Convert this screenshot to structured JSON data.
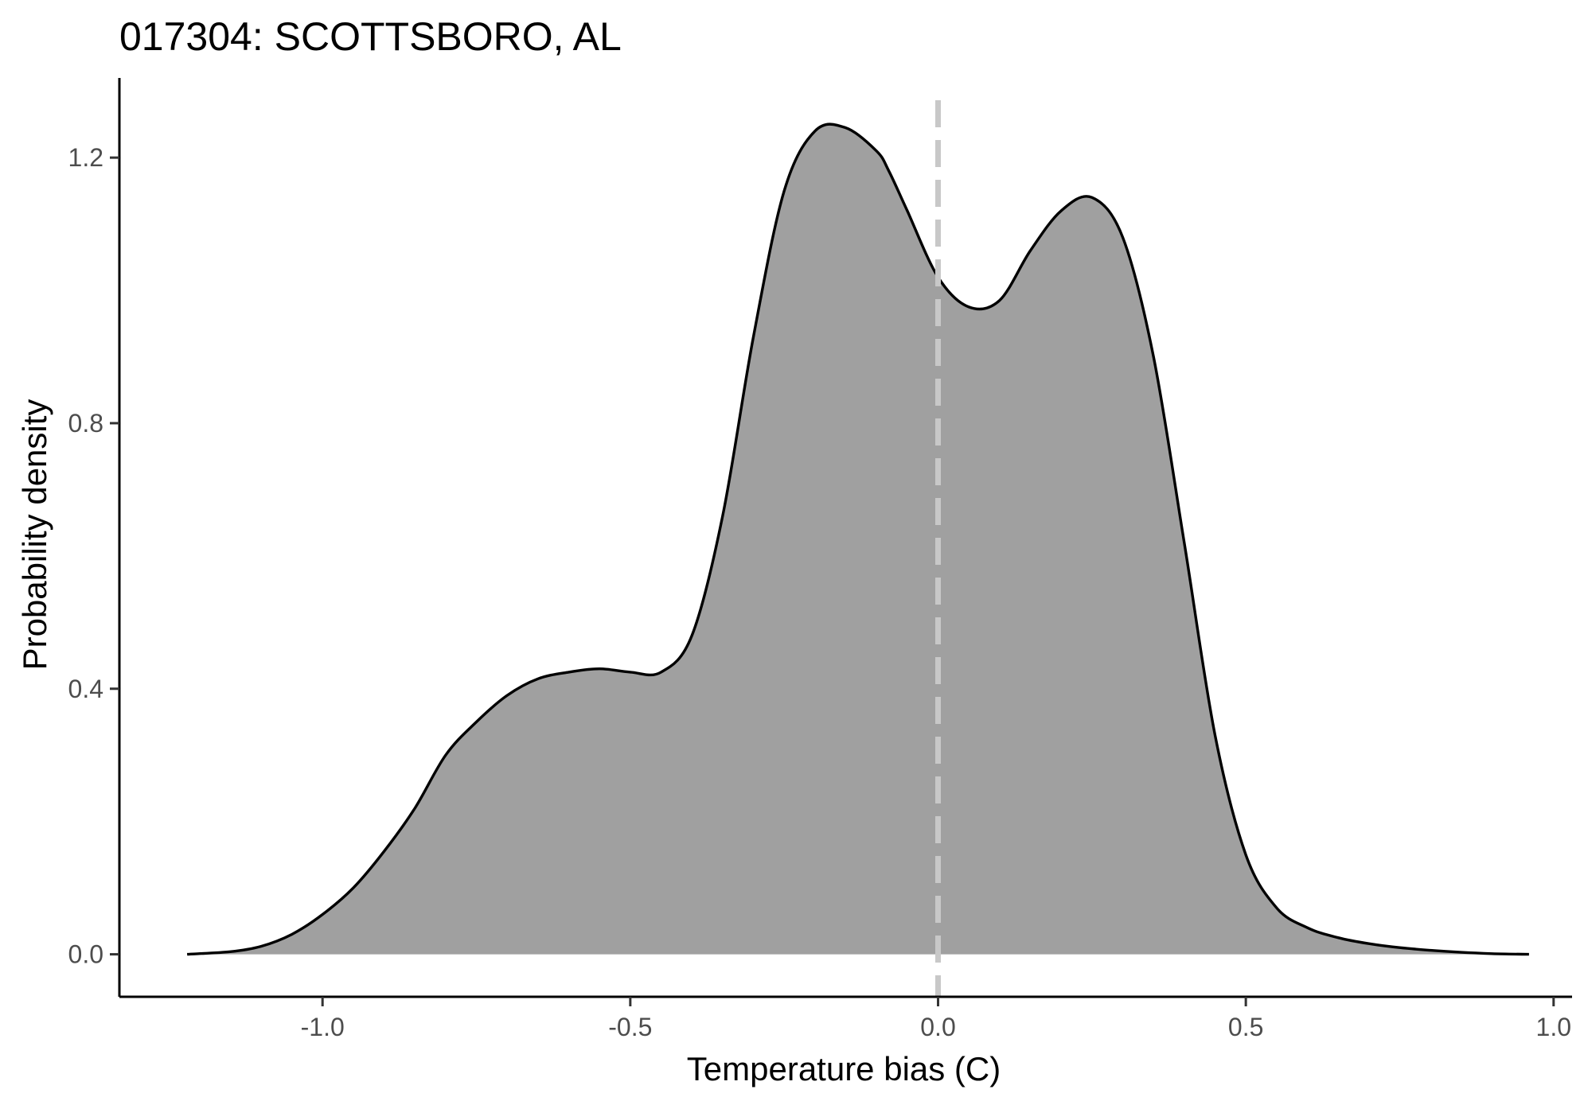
{
  "chart_data": {
    "type": "area",
    "title": "017304: SCOTTSBORO, AL",
    "xlabel": "Temperature bias (C)",
    "ylabel": "Probability density",
    "xlim": [
      -1.33,
      1.03
    ],
    "ylim": [
      -0.064,
      1.32
    ],
    "xticks": [
      -1.0,
      -0.5,
      0.0,
      0.5,
      1.0
    ],
    "xtick_labels": [
      "-1.0",
      "-0.5",
      "0.0",
      "0.5",
      "1.0"
    ],
    "yticks": [
      0.0,
      0.4,
      0.8,
      1.2
    ],
    "ytick_labels": [
      "0.0",
      "0.4",
      "0.8",
      "1.2"
    ],
    "grid": false,
    "reference_line": {
      "x": 0.0,
      "style": "dashed",
      "color": "#c8c8c8"
    },
    "fill_color": "#a0a0a0",
    "line_color": "#000000",
    "series": [
      {
        "x": [
          -1.22,
          -1.15,
          -1.1,
          -1.05,
          -1.0,
          -0.95,
          -0.9,
          -0.85,
          -0.8,
          -0.75,
          -0.7,
          -0.65,
          -0.6,
          -0.55,
          -0.5,
          -0.45,
          -0.4,
          -0.35,
          -0.3,
          -0.25,
          -0.2,
          -0.15,
          -0.1,
          -0.08,
          -0.05,
          0.0,
          0.05,
          0.1,
          0.15,
          0.2,
          0.25,
          0.3,
          0.35,
          0.4,
          0.45,
          0.5,
          0.55,
          0.6,
          0.65,
          0.7,
          0.75,
          0.8,
          0.85,
          0.9,
          0.96
        ],
        "y": [
          0.0,
          0.004,
          0.012,
          0.03,
          0.06,
          0.1,
          0.155,
          0.22,
          0.3,
          0.35,
          0.39,
          0.415,
          0.425,
          0.43,
          0.425,
          0.425,
          0.48,
          0.66,
          0.93,
          1.15,
          1.24,
          1.245,
          1.21,
          1.18,
          1.12,
          1.02,
          0.975,
          0.985,
          1.06,
          1.12,
          1.14,
          1.08,
          0.9,
          0.62,
          0.33,
          0.15,
          0.07,
          0.04,
          0.025,
          0.016,
          0.01,
          0.006,
          0.003,
          0.001,
          0.0
        ]
      }
    ]
  }
}
